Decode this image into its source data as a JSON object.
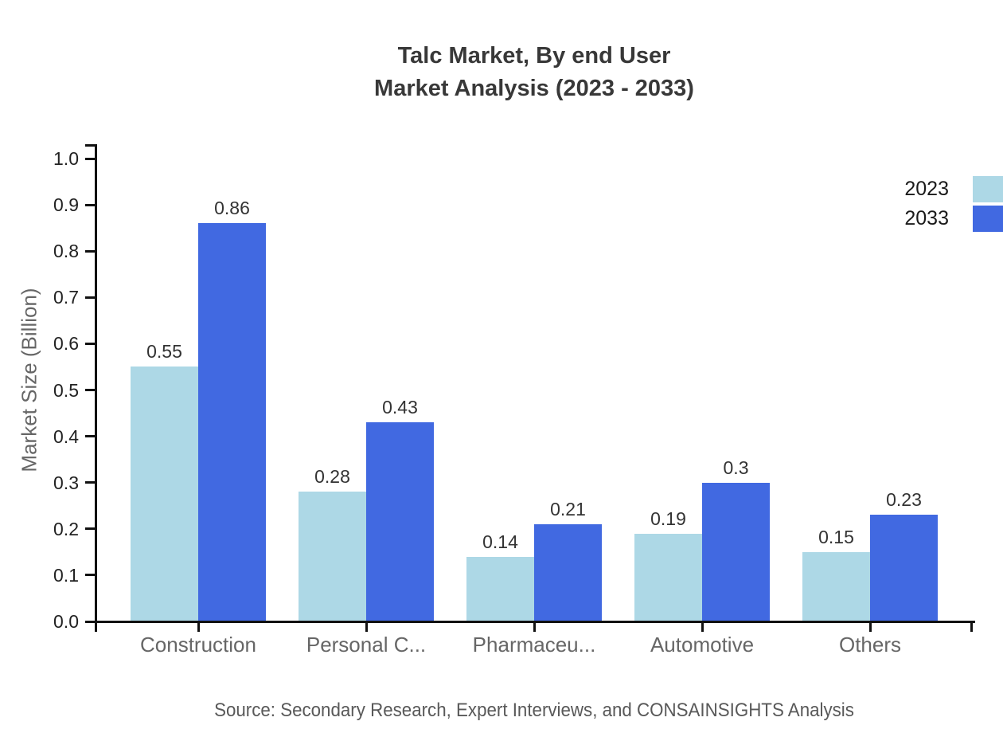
{
  "title": {
    "line1": "Talc Market, By end User",
    "line2": "Market Analysis (2023 - 2033)"
  },
  "source": {
    "text": "Source: Secondary Research, Expert Interviews, and CONSAINSIGHTS Analysis"
  },
  "chart_data": {
    "type": "bar",
    "categories": [
      "Construction",
      "Personal C...",
      "Pharmaceu...",
      "Automotive",
      "Others"
    ],
    "series": [
      {
        "name": "2023",
        "color": "#ADD8E6",
        "values": [
          0.55,
          0.28,
          0.14,
          0.19,
          0.15
        ]
      },
      {
        "name": "2033",
        "color": "#4169E1",
        "values": [
          0.86,
          0.43,
          0.21,
          0.3,
          0.23
        ]
      }
    ],
    "xlabel": "",
    "ylabel": "Market Size (Billion)",
    "ylim": [
      0,
      1.0
    ],
    "ytick_step": 0.1,
    "grid": false,
    "legend_position": "top-right",
    "bar_value_labels": true,
    "axis_color": "#111111",
    "value_label_color": "#333333",
    "category_label_color": "#666666"
  }
}
